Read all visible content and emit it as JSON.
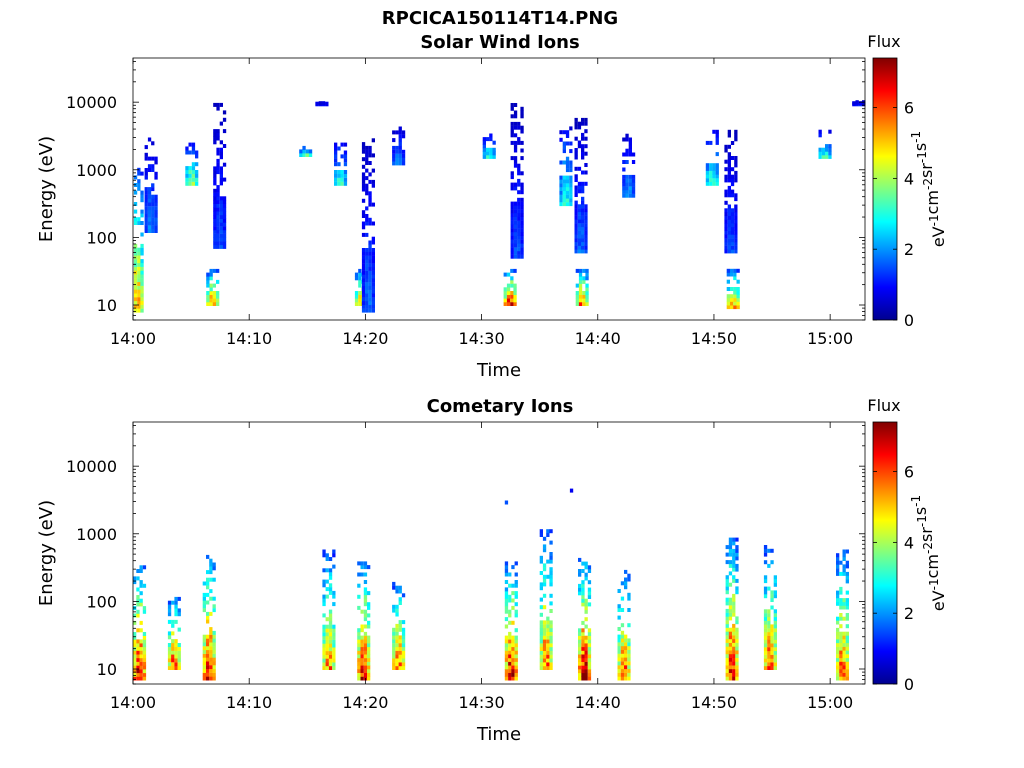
{
  "page_title": "RPCICA150114T14.PNG",
  "colormap": [
    "#00008f",
    "#0000ff",
    "#0080ff",
    "#00ffff",
    "#80ff80",
    "#ffff00",
    "#ff8000",
    "#ff0000",
    "#800000"
  ],
  "chart_data": [
    {
      "type": "heatmap",
      "title": "Solar Wind Ions",
      "xlabel": "Time",
      "ylabel": "Energy (eV)",
      "xticks": [
        "14:00",
        "14:10",
        "14:20",
        "14:30",
        "14:40",
        "14:50",
        "15:00"
      ],
      "xlim": [
        0,
        63
      ],
      "yscale": "log",
      "yticks": [
        10,
        100,
        1000,
        10000
      ],
      "ylim": [
        6,
        45000
      ],
      "colorbar": {
        "title": "Flux",
        "label": "eV-1cm-2sr-1s-1",
        "ticks": [
          0,
          2,
          4,
          6
        ],
        "range": [
          0,
          7.4
        ]
      },
      "bursts": [
        {
          "t": 0.3,
          "e_low": 8,
          "e_high": 1100,
          "peak": 5.6
        },
        {
          "t": 1.5,
          "e_low": 120,
          "e_high": 4000,
          "peak": 2.0
        },
        {
          "t": 5.0,
          "e_low": 600,
          "e_high": 2600,
          "peak": 4.0
        },
        {
          "t": 6.8,
          "e_low": 10,
          "e_high": 35,
          "peak": 5.8
        },
        {
          "t": 7.4,
          "e_low": 70,
          "e_high": 10000,
          "peak": 1.6
        },
        {
          "t": 14.8,
          "e_low": 1600,
          "e_high": 2300,
          "peak": 3.5
        },
        {
          "t": 16.2,
          "e_low": 9000,
          "e_high": 9500,
          "peak": 1.2
        },
        {
          "t": 17.8,
          "e_low": 600,
          "e_high": 2600,
          "peak": 3.2
        },
        {
          "t": 19.6,
          "e_low": 10,
          "e_high": 35,
          "peak": 5.4
        },
        {
          "t": 20.2,
          "e_low": 8,
          "e_high": 3000,
          "peak": 1.8
        },
        {
          "t": 22.8,
          "e_low": 1200,
          "e_high": 4500,
          "peak": 2.0
        },
        {
          "t": 30.6,
          "e_low": 1500,
          "e_high": 3500,
          "peak": 3.0
        },
        {
          "t": 32.4,
          "e_low": 10,
          "e_high": 35,
          "peak": 6.6
        },
        {
          "t": 33.0,
          "e_low": 50,
          "e_high": 10000,
          "peak": 1.6
        },
        {
          "t": 37.2,
          "e_low": 300,
          "e_high": 4500,
          "peak": 3.2
        },
        {
          "t": 38.6,
          "e_low": 10,
          "e_high": 35,
          "peak": 6.0
        },
        {
          "t": 38.5,
          "e_low": 60,
          "e_high": 6000,
          "peak": 1.8
        },
        {
          "t": 42.6,
          "e_low": 400,
          "e_high": 3500,
          "peak": 2.2
        },
        {
          "t": 49.8,
          "e_low": 600,
          "e_high": 4000,
          "peak": 3.4
        },
        {
          "t": 51.6,
          "e_low": 9,
          "e_high": 35,
          "peak": 5.8
        },
        {
          "t": 51.4,
          "e_low": 60,
          "e_high": 4000,
          "peak": 1.6
        },
        {
          "t": 59.5,
          "e_low": 1500,
          "e_high": 4000,
          "peak": 3.2
        },
        {
          "t": 62.4,
          "e_low": 9000,
          "e_high": 10000,
          "peak": 1.2
        }
      ]
    },
    {
      "type": "heatmap",
      "title": "Cometary Ions",
      "xlabel": "Time",
      "ylabel": "Energy (eV)",
      "xticks": [
        "14:00",
        "14:10",
        "14:20",
        "14:30",
        "14:40",
        "14:50",
        "15:00"
      ],
      "xlim": [
        0,
        63
      ],
      "yscale": "log",
      "yticks": [
        10,
        100,
        1000,
        10000
      ],
      "ylim": [
        6,
        45000
      ],
      "colorbar": {
        "title": "Flux",
        "label": "eV-1cm-2sr-1s-1",
        "ticks": [
          0,
          2,
          4,
          6
        ],
        "range": [
          0,
          7.4
        ]
      },
      "bursts": [
        {
          "t": 0.5,
          "e_low": 7,
          "e_high": 350,
          "peak": 7.2
        },
        {
          "t": 3.5,
          "e_low": 10,
          "e_high": 120,
          "peak": 6.4
        },
        {
          "t": 6.5,
          "e_low": 7,
          "e_high": 500,
          "peak": 7.0
        },
        {
          "t": 16.8,
          "e_low": 10,
          "e_high": 600,
          "peak": 5.8
        },
        {
          "t": 19.8,
          "e_low": 7,
          "e_high": 400,
          "peak": 7.0
        },
        {
          "t": 22.8,
          "e_low": 10,
          "e_high": 200,
          "peak": 6.2
        },
        {
          "t": 32.5,
          "e_low": 7,
          "e_high": 400,
          "peak": 7.3
        },
        {
          "t": 35.5,
          "e_low": 10,
          "e_high": 1200,
          "peak": 6.2
        },
        {
          "t": 38.8,
          "e_low": 7,
          "e_high": 450,
          "peak": 7.3
        },
        {
          "t": 42.2,
          "e_low": 7,
          "e_high": 300,
          "peak": 6.4
        },
        {
          "t": 51.5,
          "e_low": 7,
          "e_high": 900,
          "peak": 7.0
        },
        {
          "t": 54.8,
          "e_low": 10,
          "e_high": 700,
          "peak": 6.3
        },
        {
          "t": 61.0,
          "e_low": 7,
          "e_high": 600,
          "peak": 6.4
        }
      ],
      "points": [
        {
          "t": 32.0,
          "e": 2800,
          "v": 1.5
        },
        {
          "t": 37.6,
          "e": 4200,
          "v": 0.8
        }
      ]
    }
  ]
}
